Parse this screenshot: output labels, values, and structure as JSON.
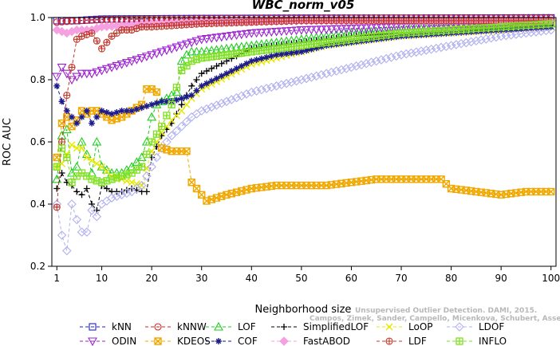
{
  "chart_data": {
    "type": "line",
    "title": "WBC_norm_v05",
    "xlabel": "Neighborhood size",
    "ylabel": "ROC AUC",
    "xlim": [
      0,
      101
    ],
    "ylim": [
      0.2,
      1.0
    ],
    "x_ticks": [
      1,
      10,
      20,
      30,
      40,
      50,
      60,
      70,
      80,
      90,
      100
    ],
    "y_ticks": [
      0.2,
      0.4,
      0.6,
      0.8,
      1.0
    ],
    "y_tick_labels": [
      "0.2",
      "0.4",
      "0.6",
      "0.8",
      "1.0"
    ],
    "grid": false,
    "legend_position": "bottom",
    "watermark": {
      "line1": "Unsupervised Outlier Detection. DAMI, 2015.",
      "line2": "Campos, Zimek, Sander, Campello, Micenkova, Schubert, Assent, Houle"
    },
    "series": [
      {
        "name": "kNN",
        "color": "#1f1fd6",
        "marker": "square",
        "points": [
          [
            1,
            0.99
          ],
          [
            5,
            0.99
          ],
          [
            10,
            0.995
          ],
          [
            20,
            0.996
          ],
          [
            30,
            0.997
          ],
          [
            50,
            0.998
          ],
          [
            70,
            0.998
          ],
          [
            100,
            0.999
          ]
        ]
      },
      {
        "name": "kNNW",
        "color": "#d62020",
        "marker": "circle",
        "points": [
          [
            1,
            0.985
          ],
          [
            5,
            0.99
          ],
          [
            10,
            0.993
          ],
          [
            20,
            0.995
          ],
          [
            30,
            0.996
          ],
          [
            50,
            0.997
          ],
          [
            70,
            0.998
          ],
          [
            100,
            0.998
          ]
        ]
      },
      {
        "name": "LOF",
        "color": "#22cc22",
        "marker": "triangle-up",
        "points": [
          [
            1,
            0.48
          ],
          [
            2,
            0.62
          ],
          [
            3,
            0.64
          ],
          [
            4,
            0.5
          ],
          [
            5,
            0.52
          ],
          [
            6,
            0.6
          ],
          [
            7,
            0.56
          ],
          [
            8,
            0.5
          ],
          [
            9,
            0.6
          ],
          [
            10,
            0.52
          ],
          [
            12,
            0.5
          ],
          [
            14,
            0.5
          ],
          [
            16,
            0.52
          ],
          [
            18,
            0.55
          ],
          [
            19,
            0.6
          ],
          [
            20,
            0.68
          ],
          [
            21,
            0.72
          ],
          [
            22,
            0.73
          ],
          [
            23,
            0.74
          ],
          [
            24,
            0.75
          ],
          [
            25,
            0.76
          ],
          [
            26,
            0.86
          ],
          [
            27,
            0.88
          ],
          [
            28,
            0.89
          ],
          [
            30,
            0.89
          ],
          [
            35,
            0.9
          ],
          [
            40,
            0.91
          ],
          [
            45,
            0.92
          ],
          [
            50,
            0.93
          ],
          [
            55,
            0.94
          ],
          [
            60,
            0.95
          ],
          [
            70,
            0.96
          ],
          [
            80,
            0.97
          ],
          [
            90,
            0.975
          ],
          [
            100,
            0.98
          ]
        ]
      },
      {
        "name": "SimplifiedLOF",
        "color": "#000000",
        "marker": "plus",
        "points": [
          [
            1,
            0.45
          ],
          [
            2,
            0.5
          ],
          [
            3,
            0.47
          ],
          [
            4,
            0.46
          ],
          [
            5,
            0.44
          ],
          [
            6,
            0.43
          ],
          [
            7,
            0.45
          ],
          [
            8,
            0.4
          ],
          [
            9,
            0.38
          ],
          [
            10,
            0.46
          ],
          [
            12,
            0.44
          ],
          [
            14,
            0.44
          ],
          [
            16,
            0.45
          ],
          [
            18,
            0.44
          ],
          [
            19,
            0.44
          ],
          [
            20,
            0.55
          ],
          [
            22,
            0.62
          ],
          [
            24,
            0.66
          ],
          [
            26,
            0.72
          ],
          [
            28,
            0.78
          ],
          [
            30,
            0.82
          ],
          [
            35,
            0.86
          ],
          [
            40,
            0.9
          ],
          [
            45,
            0.91
          ],
          [
            50,
            0.92
          ],
          [
            55,
            0.93
          ],
          [
            60,
            0.94
          ],
          [
            70,
            0.95
          ],
          [
            80,
            0.96
          ],
          [
            90,
            0.97
          ],
          [
            100,
            0.975
          ]
        ]
      },
      {
        "name": "LoOP",
        "color": "#e8e800",
        "marker": "x",
        "points": [
          [
            1,
            0.52
          ],
          [
            2,
            0.53
          ],
          [
            3,
            0.56
          ],
          [
            4,
            0.59
          ],
          [
            5,
            0.58
          ],
          [
            6,
            0.58
          ],
          [
            7,
            0.55
          ],
          [
            8,
            0.54
          ],
          [
            9,
            0.53
          ],
          [
            10,
            0.52
          ],
          [
            12,
            0.49
          ],
          [
            14,
            0.48
          ],
          [
            16,
            0.47
          ],
          [
            18,
            0.46
          ],
          [
            20,
            0.57
          ],
          [
            22,
            0.63
          ],
          [
            24,
            0.67
          ],
          [
            26,
            0.7
          ],
          [
            28,
            0.74
          ],
          [
            30,
            0.77
          ],
          [
            35,
            0.81
          ],
          [
            40,
            0.85
          ],
          [
            45,
            0.87
          ],
          [
            50,
            0.89
          ],
          [
            55,
            0.91
          ],
          [
            60,
            0.92
          ],
          [
            70,
            0.94
          ],
          [
            80,
            0.95
          ],
          [
            90,
            0.96
          ],
          [
            100,
            0.97
          ]
        ]
      },
      {
        "name": "LDOF",
        "color": "#b0b0f0",
        "marker": "diamond",
        "points": [
          [
            1,
            0.4
          ],
          [
            2,
            0.3
          ],
          [
            3,
            0.25
          ],
          [
            4,
            0.4
          ],
          [
            5,
            0.35
          ],
          [
            6,
            0.31
          ],
          [
            7,
            0.31
          ],
          [
            8,
            0.38
          ],
          [
            9,
            0.36
          ],
          [
            10,
            0.4
          ],
          [
            12,
            0.42
          ],
          [
            14,
            0.43
          ],
          [
            16,
            0.44
          ],
          [
            18,
            0.46
          ],
          [
            20,
            0.52
          ],
          [
            22,
            0.58
          ],
          [
            24,
            0.62
          ],
          [
            26,
            0.65
          ],
          [
            28,
            0.68
          ],
          [
            30,
            0.7
          ],
          [
            35,
            0.73
          ],
          [
            40,
            0.76
          ],
          [
            45,
            0.78
          ],
          [
            50,
            0.8
          ],
          [
            55,
            0.82
          ],
          [
            60,
            0.84
          ],
          [
            70,
            0.88
          ],
          [
            80,
            0.91
          ],
          [
            90,
            0.94
          ],
          [
            100,
            0.96
          ]
        ]
      },
      {
        "name": "ODIN",
        "color": "#9a20d0",
        "marker": "triangle-down",
        "points": [
          [
            1,
            0.81
          ],
          [
            2,
            0.84
          ],
          [
            3,
            0.82
          ],
          [
            4,
            0.8
          ],
          [
            5,
            0.81
          ],
          [
            6,
            0.82
          ],
          [
            8,
            0.82
          ],
          [
            10,
            0.83
          ],
          [
            12,
            0.84
          ],
          [
            14,
            0.85
          ],
          [
            16,
            0.86
          ],
          [
            18,
            0.87
          ],
          [
            20,
            0.88
          ],
          [
            22,
            0.89
          ],
          [
            24,
            0.9
          ],
          [
            26,
            0.91
          ],
          [
            28,
            0.92
          ],
          [
            30,
            0.93
          ],
          [
            35,
            0.94
          ],
          [
            40,
            0.95
          ],
          [
            45,
            0.955
          ],
          [
            50,
            0.96
          ],
          [
            60,
            0.965
          ],
          [
            70,
            0.97
          ],
          [
            80,
            0.975
          ],
          [
            90,
            0.98
          ],
          [
            100,
            0.98
          ]
        ]
      },
      {
        "name": "KDEOS",
        "color": "#f0a800",
        "marker": "square-x",
        "points": [
          [
            1,
            0.55
          ],
          [
            2,
            0.66
          ],
          [
            3,
            0.68
          ],
          [
            4,
            0.65
          ],
          [
            5,
            0.67
          ],
          [
            6,
            0.7
          ],
          [
            7,
            0.69
          ],
          [
            8,
            0.7
          ],
          [
            9,
            0.7
          ],
          [
            10,
            0.69
          ],
          [
            12,
            0.67
          ],
          [
            14,
            0.68
          ],
          [
            16,
            0.7
          ],
          [
            18,
            0.72
          ],
          [
            19,
            0.77
          ],
          [
            20,
            0.77
          ],
          [
            21,
            0.76
          ],
          [
            22,
            0.58
          ],
          [
            24,
            0.57
          ],
          [
            26,
            0.57
          ],
          [
            27,
            0.57
          ],
          [
            28,
            0.47
          ],
          [
            30,
            0.43
          ],
          [
            31,
            0.41
          ],
          [
            33,
            0.42
          ],
          [
            35,
            0.43
          ],
          [
            40,
            0.45
          ],
          [
            45,
            0.46
          ],
          [
            50,
            0.46
          ],
          [
            55,
            0.46
          ],
          [
            60,
            0.47
          ],
          [
            65,
            0.48
          ],
          [
            70,
            0.48
          ],
          [
            75,
            0.48
          ],
          [
            78,
            0.48
          ],
          [
            80,
            0.45
          ],
          [
            85,
            0.44
          ],
          [
            90,
            0.43
          ],
          [
            95,
            0.44
          ],
          [
            100,
            0.44
          ]
        ]
      },
      {
        "name": "COF",
        "color": "#1a1a8a",
        "marker": "asterisk",
        "points": [
          [
            1,
            0.78
          ],
          [
            2,
            0.73
          ],
          [
            3,
            0.7
          ],
          [
            4,
            0.68
          ],
          [
            5,
            0.66
          ],
          [
            6,
            0.68
          ],
          [
            7,
            0.7
          ],
          [
            8,
            0.66
          ],
          [
            9,
            0.68
          ],
          [
            10,
            0.7
          ],
          [
            12,
            0.69
          ],
          [
            14,
            0.7
          ],
          [
            16,
            0.7
          ],
          [
            18,
            0.71
          ],
          [
            20,
            0.72
          ],
          [
            22,
            0.73
          ],
          [
            24,
            0.73
          ],
          [
            26,
            0.74
          ],
          [
            28,
            0.75
          ],
          [
            30,
            0.78
          ],
          [
            35,
            0.82
          ],
          [
            40,
            0.86
          ],
          [
            45,
            0.88
          ],
          [
            50,
            0.89
          ],
          [
            55,
            0.91
          ],
          [
            60,
            0.92
          ],
          [
            70,
            0.94
          ],
          [
            80,
            0.95
          ],
          [
            90,
            0.96
          ],
          [
            100,
            0.97
          ]
        ]
      },
      {
        "name": "FastABOD",
        "color": "#f5a0e0",
        "marker": "diamond-filled",
        "points": [
          [
            1,
            0.96
          ],
          [
            3,
            0.95
          ],
          [
            5,
            0.96
          ],
          [
            8,
            0.96
          ],
          [
            10,
            0.97
          ],
          [
            15,
            0.975
          ],
          [
            20,
            0.98
          ],
          [
            30,
            0.985
          ],
          [
            50,
            0.99
          ],
          [
            70,
            0.99
          ],
          [
            100,
            0.99
          ]
        ]
      },
      {
        "name": "LDF",
        "color": "#c0382b",
        "marker": "circle-plus",
        "points": [
          [
            1,
            0.39
          ],
          [
            2,
            0.6
          ],
          [
            3,
            0.75
          ],
          [
            4,
            0.84
          ],
          [
            5,
            0.93
          ],
          [
            6,
            0.94
          ],
          [
            8,
            0.95
          ],
          [
            10,
            0.9
          ],
          [
            12,
            0.94
          ],
          [
            14,
            0.96
          ],
          [
            16,
            0.96
          ],
          [
            18,
            0.97
          ],
          [
            20,
            0.97
          ],
          [
            25,
            0.975
          ],
          [
            30,
            0.98
          ],
          [
            40,
            0.985
          ],
          [
            50,
            0.99
          ],
          [
            70,
            0.99
          ],
          [
            100,
            0.99
          ]
        ]
      },
      {
        "name": "INFLO",
        "color": "#7ee020",
        "marker": "square-cross",
        "points": [
          [
            1,
            0.52
          ],
          [
            2,
            0.58
          ],
          [
            3,
            0.55
          ],
          [
            4,
            0.47
          ],
          [
            5,
            0.49
          ],
          [
            6,
            0.5
          ],
          [
            8,
            0.48
          ],
          [
            10,
            0.47
          ],
          [
            12,
            0.48
          ],
          [
            14,
            0.49
          ],
          [
            16,
            0.5
          ],
          [
            18,
            0.52
          ],
          [
            20,
            0.6
          ],
          [
            22,
            0.65
          ],
          [
            24,
            0.72
          ],
          [
            26,
            0.83
          ],
          [
            28,
            0.86
          ],
          [
            30,
            0.87
          ],
          [
            35,
            0.88
          ],
          [
            40,
            0.89
          ],
          [
            45,
            0.9
          ],
          [
            50,
            0.91
          ],
          [
            55,
            0.92
          ],
          [
            60,
            0.93
          ],
          [
            70,
            0.95
          ],
          [
            80,
            0.96
          ],
          [
            90,
            0.97
          ],
          [
            100,
            0.98
          ]
        ]
      }
    ]
  }
}
